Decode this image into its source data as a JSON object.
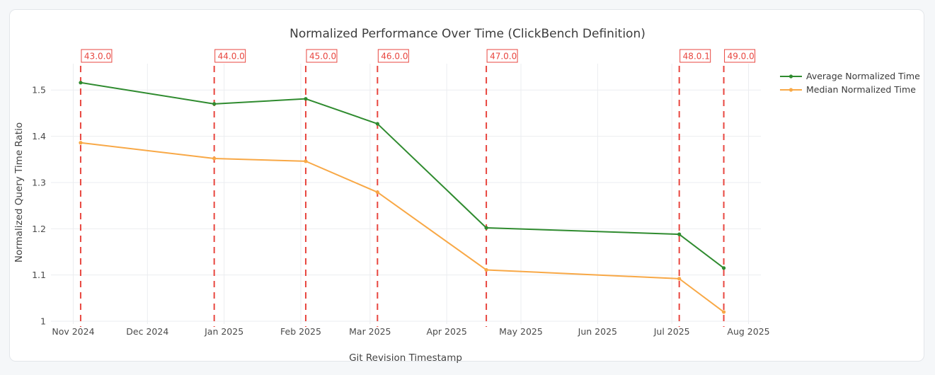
{
  "window": {
    "background": "#f5f7f9",
    "card_background": "#ffffff",
    "card_border": "#e3e6ea"
  },
  "chart_data": {
    "type": "line",
    "title": "Normalized Performance Over Time (ClickBench Definition)",
    "xlabel": "Git Revision Timestamp",
    "ylabel": "Normalized Query Time Ratio",
    "legend_position": "top-right",
    "grid": true,
    "grid_color": "#ebedf0",
    "tick_color": "#4a4a4a",
    "x_range": [
      "2024-10-23",
      "2025-08-06"
    ],
    "ylim": [
      1.0,
      1.557
    ],
    "y_ticks": [
      {
        "value": 1.0,
        "label": "1"
      },
      {
        "value": 1.1,
        "label": "1.1"
      },
      {
        "value": 1.2,
        "label": "1.2"
      },
      {
        "value": 1.3,
        "label": "1.3"
      },
      {
        "value": 1.4,
        "label": "1.4"
      },
      {
        "value": 1.5,
        "label": "1.5"
      }
    ],
    "x_ticks": [
      {
        "date": "2024-11-01",
        "label": "Nov 2024"
      },
      {
        "date": "2024-12-01",
        "label": "Dec 2024"
      },
      {
        "date": "2025-01-01",
        "label": "Jan 2025"
      },
      {
        "date": "2025-02-01",
        "label": "Feb 2025"
      },
      {
        "date": "2025-03-01",
        "label": "Mar 2025"
      },
      {
        "date": "2025-04-01",
        "label": "Apr 2025"
      },
      {
        "date": "2025-05-01",
        "label": "May 2025"
      },
      {
        "date": "2025-06-01",
        "label": "Jun 2025"
      },
      {
        "date": "2025-07-01",
        "label": "Jul 2025"
      },
      {
        "date": "2025-08-01",
        "label": "Aug 2025"
      }
    ],
    "version_markers": {
      "color": "#e8463f",
      "items": [
        {
          "label": "43.0.0",
          "date": "2024-11-04"
        },
        {
          "label": "44.0.0",
          "date": "2024-12-28"
        },
        {
          "label": "45.0.0",
          "date": "2025-02-03"
        },
        {
          "label": "46.0.0",
          "date": "2025-03-04"
        },
        {
          "label": "47.0.0",
          "date": "2025-04-17"
        },
        {
          "label": "48.0.1",
          "date": "2025-07-04"
        },
        {
          "label": "49.0.0",
          "date": "2025-07-22"
        }
      ]
    },
    "series": [
      {
        "name": "Average Normalized Time",
        "color": "#2f8b2f",
        "x": [
          "2024-11-04",
          "2024-12-28",
          "2025-02-03",
          "2025-03-04",
          "2025-04-17",
          "2025-07-04",
          "2025-07-22"
        ],
        "values": [
          1.516,
          1.47,
          1.481,
          1.427,
          1.202,
          1.188,
          1.115
        ]
      },
      {
        "name": "Median Normalized Time",
        "color": "#f8a846",
        "x": [
          "2024-11-04",
          "2024-12-28",
          "2025-02-03",
          "2025-03-04",
          "2025-04-17",
          "2025-07-04",
          "2025-07-22"
        ],
        "values": [
          1.386,
          1.352,
          1.346,
          1.279,
          1.111,
          1.092,
          1.02
        ]
      }
    ]
  }
}
